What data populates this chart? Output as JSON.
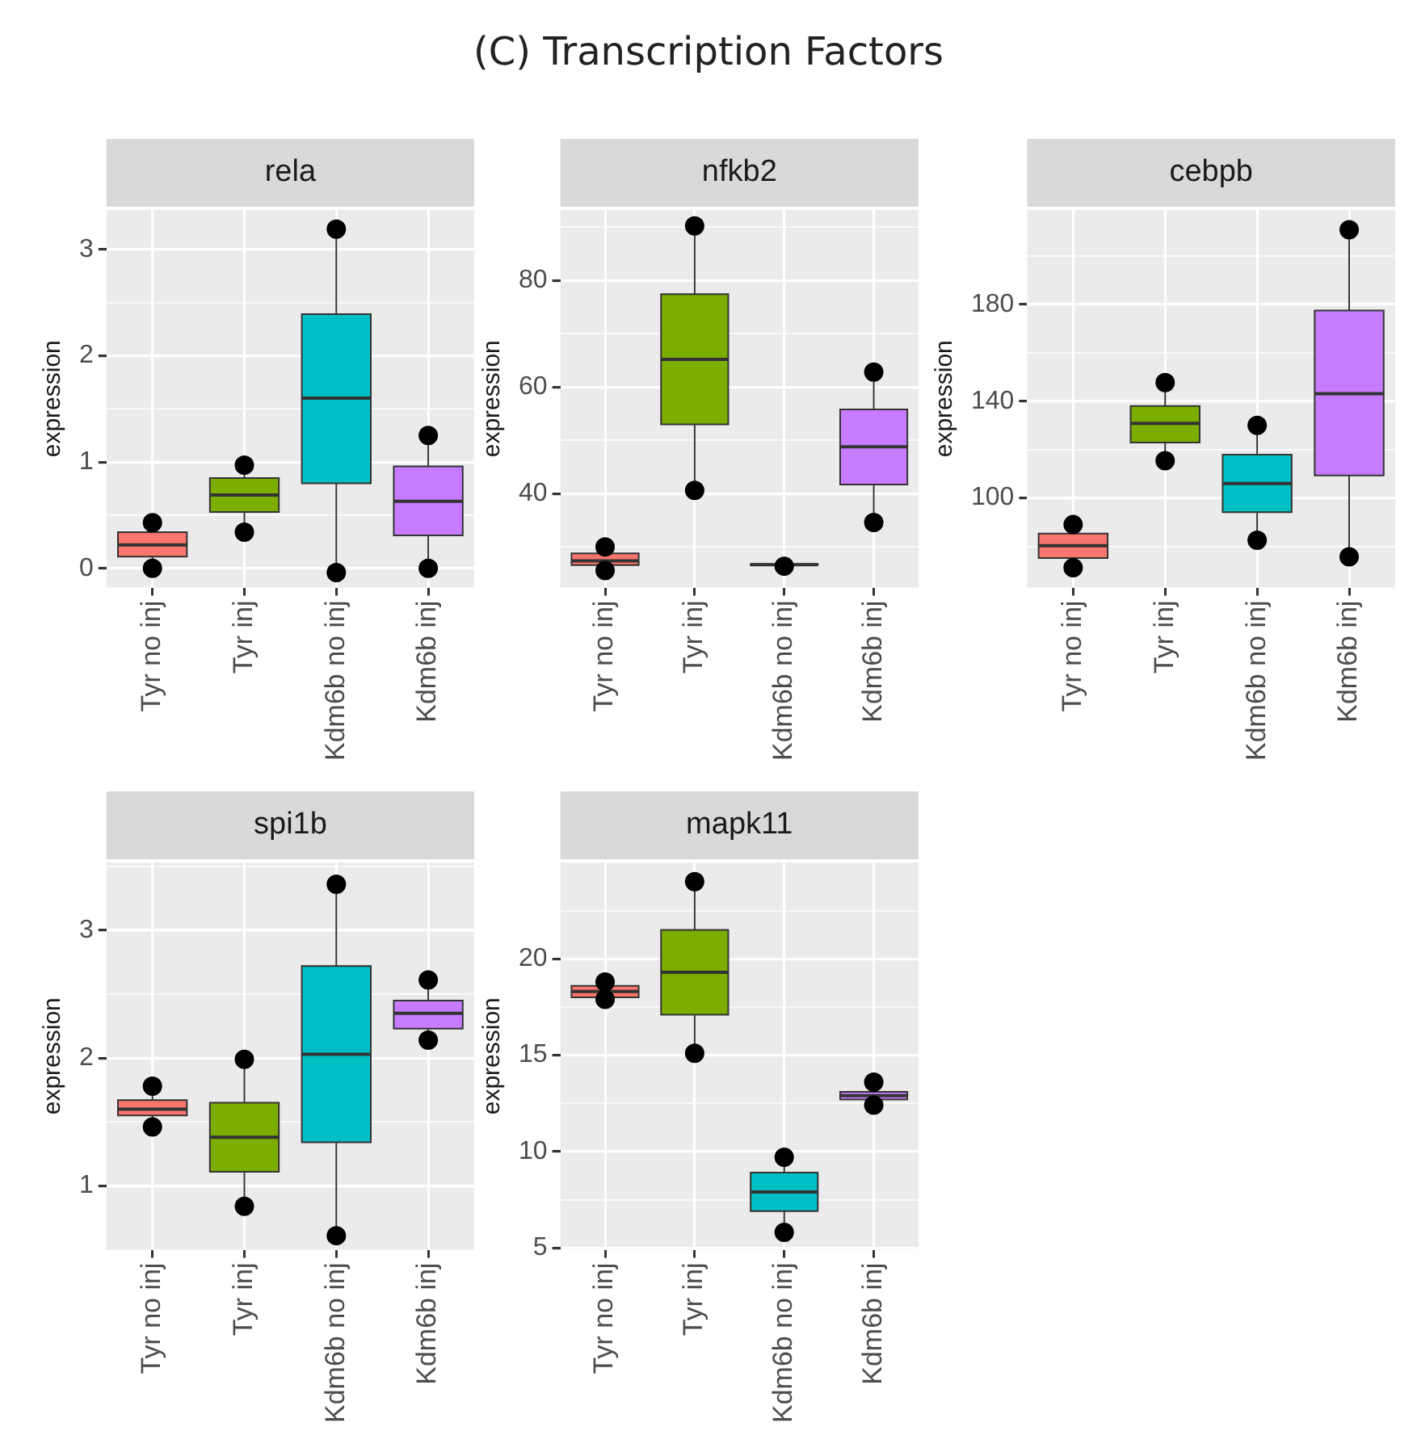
{
  "chart_data": [
    {
      "type": "box",
      "title": "rela",
      "ylabel": "expression",
      "annotations": [
        "(C) Transcription Factors"
      ],
      "grid": true,
      "categories": [
        "Tyr no inj",
        "Tyr inj",
        "Kdm6b no inj",
        "Kdm6b inj"
      ],
      "ylim": [
        -0.18,
        3.37
      ],
      "yticks": [
        0,
        {
          "value": 0.5,
          "label": null
        },
        1,
        {
          "value": 1.5,
          "label": null
        },
        2,
        {
          "value": 2.5,
          "label": null
        },
        3
      ],
      "series": [
        {
          "type": "box",
          "colors": [
            "#f8766d",
            "#7cae00",
            "#00bfc4",
            "#c77cff"
          ],
          "boxes": [
            {
              "low": 0,
              "q1": 0.11,
              "median": 0.22,
              "q3": 0.34,
              "high": 0.43
            },
            {
              "low": 0.34,
              "q1": 0.53,
              "median": 0.69,
              "q3": 0.85,
              "high": 0.97
            },
            {
              "low": -0.04,
              "q1": 0.8,
              "median": 1.6,
              "q3": 2.39,
              "high": 3.19
            },
            {
              "low": 0,
              "q1": 0.31,
              "median": 0.63,
              "q3": 0.96,
              "high": 1.25
            }
          ]
        },
        {
          "type": "scatter",
          "color": "#000000",
          "x": [
            "Tyr no inj",
            "Tyr no inj",
            "Tyr inj",
            "Tyr inj",
            "Kdm6b no inj",
            "Kdm6b no inj",
            "Kdm6b inj",
            "Kdm6b inj"
          ],
          "values": [
            0.43,
            0,
            0.97,
            0.34,
            3.19,
            -0.04,
            1.25,
            0
          ]
        }
      ]
    },
    {
      "type": "box",
      "title": "nfkb2",
      "ylabel": "expression",
      "grid": true,
      "categories": [
        "Tyr no inj",
        "Tyr inj",
        "Kdm6b no inj",
        "Kdm6b inj"
      ],
      "ylim": [
        22.4,
        93.2
      ],
      "yticks": [
        {
          "value": 30,
          "label": null
        },
        40,
        {
          "value": 50,
          "label": null
        },
        60,
        {
          "value": 70,
          "label": null
        },
        80,
        {
          "value": 90,
          "label": null
        }
      ],
      "series": [
        {
          "type": "box",
          "colors": [
            "#f8766d",
            "#7cae00",
            "#00bfc4",
            "#c77cff"
          ],
          "boxes": [
            {
              "low": 25.6,
              "q1": 26.6,
              "median": 27.4,
              "q3": 28.8,
              "high": 30
            },
            {
              "low": 40.6,
              "q1": 53,
              "median": 65.2,
              "q3": 77.4,
              "high": 90.2
            },
            {
              "low": 26.4,
              "q1": 26.6,
              "median": 26.7,
              "q3": 26.8,
              "high": 27
            },
            {
              "low": 34.6,
              "q1": 41.7,
              "median": 48.8,
              "q3": 55.8,
              "high": 62.8
            }
          ]
        },
        {
          "type": "scatter",
          "color": "#000000",
          "x": [
            "Tyr no inj",
            "Tyr no inj",
            "Tyr inj",
            "Tyr inj",
            "Kdm6b no inj",
            "Kdm6b inj",
            "Kdm6b inj"
          ],
          "values": [
            30,
            25.6,
            90.2,
            40.6,
            26.4,
            62.8,
            34.6
          ]
        }
      ]
    },
    {
      "type": "box",
      "title": "cebpb",
      "ylabel": "expression",
      "grid": true,
      "categories": [
        "Tyr no inj",
        "Tyr inj",
        "Kdm6b no inj",
        "Kdm6b inj"
      ],
      "ylim": [
        63,
        219
      ],
      "yticks": [
        {
          "value": 80,
          "label": null
        },
        100,
        {
          "value": 120,
          "label": null
        },
        140,
        {
          "value": 160,
          "label": null
        },
        180,
        {
          "value": 200,
          "label": null
        }
      ],
      "series": [
        {
          "type": "box",
          "colors": [
            "#f8766d",
            "#7cae00",
            "#00bfc4",
            "#c77cff"
          ],
          "boxes": [
            {
              "low": 71.2,
              "q1": 75.2,
              "median": 80.3,
              "q3": 85.3,
              "high": 89
            },
            {
              "low": 115.4,
              "q1": 122.9,
              "median": 130.8,
              "q3": 138,
              "high": 147.7
            },
            {
              "low": 82.5,
              "q1": 94.1,
              "median": 106,
              "q3": 117.9,
              "high": 130
            },
            {
              "low": 75.7,
              "q1": 109.3,
              "median": 143.1,
              "q3": 177.5,
              "high": 210.8
            }
          ]
        },
        {
          "type": "scatter",
          "color": "#000000",
          "x": [
            "Tyr no inj",
            "Tyr no inj",
            "Tyr inj",
            "Tyr inj",
            "Kdm6b no inj",
            "Kdm6b no inj",
            "Kdm6b inj",
            "Kdm6b inj"
          ],
          "values": [
            89,
            71.2,
            147.7,
            115.4,
            130,
            82.5,
            210.8,
            75.7
          ]
        }
      ]
    },
    {
      "type": "box",
      "title": "spi1b",
      "ylabel": "expression",
      "grid": true,
      "categories": [
        "Tyr no inj",
        "Tyr inj",
        "Kdm6b no inj",
        "Kdm6b inj"
      ],
      "ylim": [
        0.5,
        3.53
      ],
      "yticks": [
        1,
        {
          "value": 1.5,
          "label": null
        },
        2,
        {
          "value": 2.5,
          "label": null
        },
        3,
        {
          "value": 3.5,
          "label": null
        }
      ],
      "series": [
        {
          "type": "box",
          "colors": [
            "#f8766d",
            "#7cae00",
            "#00bfc4",
            "#c77cff"
          ],
          "boxes": [
            {
              "low": 1.46,
              "q1": 1.55,
              "median": 1.6,
              "q3": 1.67,
              "high": 1.78
            },
            {
              "low": 0.84,
              "q1": 1.11,
              "median": 1.38,
              "q3": 1.65,
              "high": 1.99
            },
            {
              "low": 0.61,
              "q1": 1.34,
              "median": 2.03,
              "q3": 2.72,
              "high": 3.36
            },
            {
              "low": 2.14,
              "q1": 2.23,
              "median": 2.35,
              "q3": 2.45,
              "high": 2.61
            }
          ]
        },
        {
          "type": "scatter",
          "color": "#000000",
          "x": [
            "Tyr no inj",
            "Tyr no inj",
            "Tyr inj",
            "Tyr inj",
            "Kdm6b no inj",
            "Kdm6b no inj",
            "Kdm6b inj",
            "Kdm6b inj"
          ],
          "values": [
            1.78,
            1.46,
            1.99,
            0.84,
            3.36,
            0.61,
            2.61,
            2.14
          ]
        }
      ]
    },
    {
      "type": "box",
      "title": "mapk11",
      "ylabel": "expression",
      "grid": true,
      "categories": [
        "Tyr no inj",
        "Tyr inj",
        "Kdm6b no inj",
        "Kdm6b inj"
      ],
      "ylim": [
        4.9,
        25
      ],
      "yticks": [
        5,
        {
          "value": 7.5,
          "label": null
        },
        10,
        {
          "value": 12.5,
          "label": null
        },
        15,
        {
          "value": 17.5,
          "label": null
        },
        20,
        {
          "value": 22.5,
          "label": null
        }
      ],
      "series": [
        {
          "type": "box",
          "colors": [
            "#f8766d",
            "#7cae00",
            "#00bfc4",
            "#c77cff"
          ],
          "boxes": [
            {
              "low": 17.9,
              "q1": 18,
              "median": 18.3,
              "q3": 18.6,
              "high": 18.8
            },
            {
              "low": 15.1,
              "q1": 17.1,
              "median": 19.3,
              "q3": 21.5,
              "high": 24
            },
            {
              "low": 5.8,
              "q1": 6.9,
              "median": 7.9,
              "q3": 8.9,
              "high": 9.7
            },
            {
              "low": 12.4,
              "q1": 12.7,
              "median": 12.9,
              "q3": 13.1,
              "high": 13.6
            }
          ]
        },
        {
          "type": "scatter",
          "color": "#000000",
          "x": [
            "Tyr no inj",
            "Tyr no inj",
            "Tyr inj",
            "Tyr inj",
            "Kdm6b no inj",
            "Kdm6b no inj",
            "Kdm6b inj",
            "Kdm6b inj"
          ],
          "values": [
            18.8,
            17.9,
            24,
            15.1,
            9.7,
            5.8,
            13.6,
            12.4
          ]
        }
      ]
    }
  ]
}
